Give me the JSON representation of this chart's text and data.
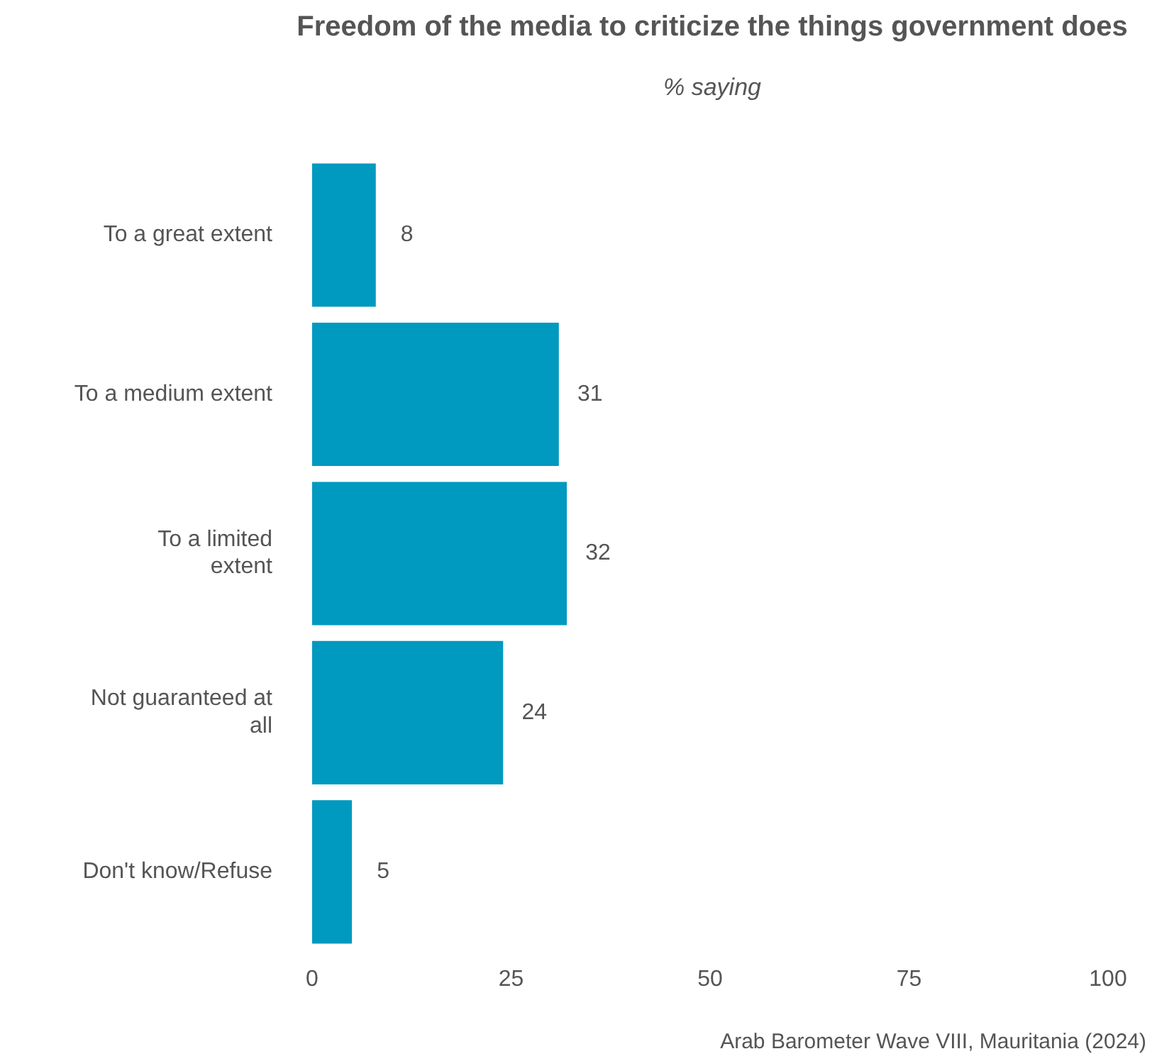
{
  "chart_data": {
    "type": "bar",
    "orientation": "horizontal",
    "title": "Freedom of the media to criticize the things government does",
    "subtitle": "% saying",
    "categories": [
      "To a great extent",
      "To a medium extent",
      "To a limited extent",
      "Not guaranteed at all",
      "Don't know/Refuse"
    ],
    "values": [
      8,
      31,
      32,
      24,
      5
    ],
    "color": "#0099bf",
    "data_labels": true,
    "xlim": [
      0,
      100
    ],
    "xticks": [
      0,
      25,
      50,
      75,
      100
    ],
    "grid": false,
    "legend": false,
    "annotations": [
      "Arab Barometer Wave VIII, Mauritania (2024)"
    ]
  }
}
